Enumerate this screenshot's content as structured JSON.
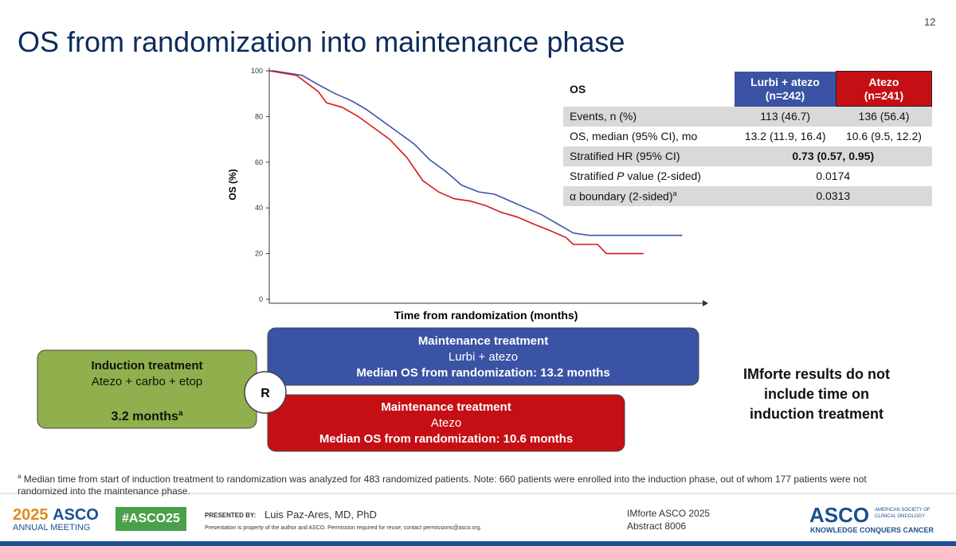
{
  "page_number": "12",
  "title": "OS from randomization into maintenance phase",
  "chart_data": {
    "type": "line",
    "y_label": "OS (%)",
    "x_label": "Time from randomization (months)",
    "xlim": [
      0,
      30
    ],
    "ylim": [
      0,
      100
    ],
    "yticks": [
      0,
      20,
      40,
      60,
      80,
      100
    ],
    "series": [
      {
        "color": "#3a53a4",
        "x": [
          0,
          0.3,
          2.3,
          3.4,
          4.6,
          5.7,
          6.8,
          7.9,
          9,
          10.1,
          11.2,
          12.3,
          13.4,
          14.6,
          15.7,
          16.8,
          17.9,
          19,
          20.1,
          21.2,
          22.3,
          28.8
        ],
        "values": [
          100,
          100,
          98,
          94,
          90,
          87,
          83,
          78,
          73,
          68,
          61,
          56,
          50,
          47,
          46,
          43,
          40,
          37,
          33,
          29,
          28,
          28
        ]
      },
      {
        "color": "#d7191c",
        "x": [
          0,
          1.9,
          3.4,
          4,
          5.1,
          6.2,
          7.3,
          8.4,
          9.6,
          10.7,
          11.8,
          12.9,
          14,
          15.1,
          16.2,
          17.3,
          18.4,
          19.6,
          20.7,
          21.2,
          22.9,
          23.5,
          26.1
        ],
        "values": [
          100,
          98,
          91,
          86,
          84,
          80,
          75,
          70,
          62,
          52,
          47,
          44,
          43,
          41,
          38,
          36,
          33,
          30,
          27,
          24,
          24,
          20,
          20
        ]
      }
    ]
  },
  "table": {
    "header": [
      "OS",
      "Lurbi + atezo",
      "(n=242)",
      "Atezo",
      "(n=241)"
    ],
    "rows": [
      {
        "label": [
          "Events, n (%)"
        ],
        "cells": [
          "113 (46.7)",
          "136 (56.4)"
        ]
      },
      {
        "label": [
          "OS, median (95% CI), mo"
        ],
        "cells": [
          "13.2 (11.9, 16.4)",
          "10.6 (9.5, 12.2)"
        ]
      },
      {
        "label": [
          "Stratified HR (95% CI)"
        ],
        "cells": [
          "0.73 (0.57, 0.95)"
        ]
      },
      {
        "label": [
          "Stratified ",
          "P",
          " value (2-sided)"
        ],
        "cells": [
          "0.0174"
        ]
      },
      {
        "label": [
          "α boundary (2-sided)",
          "a"
        ],
        "cells": [
          "0.0313"
        ]
      }
    ]
  },
  "induction": {
    "title": "Induction treatment",
    "drugs": "Atezo + carbo + etop",
    "duration": "3.2 months",
    "sup": "a"
  },
  "randomization": "R",
  "arm_blue": {
    "title": "Maintenance treatment",
    "drug": "Lurbi + atezo",
    "median": "Median OS from randomization: 13.2 months"
  },
  "arm_red": {
    "title": "Maintenance treatment",
    "drug": "Atezo",
    "median": "Median OS from randomization: 10.6 months"
  },
  "note": [
    "IMforte results do not",
    "include time on",
    "induction treatment"
  ],
  "footnote": {
    "sup": "a",
    "text": "Median time from start of induction treatment to randomization was analyzed for 483 randomized patients. Note: 660 patients were enrolled into the induction phase, out of whom 177 patients were not randomized into the maintenance phase."
  },
  "footer": {
    "year": "2025",
    "asco": "ASCO",
    "meeting": "ANNUAL MEETING",
    "hashtag": "#ASCO25",
    "presented_by": "PRESENTED BY:",
    "presenter": "Luis Paz-Ares, MD, PhD",
    "disclaimer": "Presentation is property of the author and ASCO. Permission required for reuse; contact permissions@asco.org.",
    "study": "IMforte ASCO 2025",
    "abstract": "Abstract 8006",
    "logo": "ASCO",
    "society": [
      "AMERICAN SOCIETY OF",
      "CLINICAL ONCOLOGY"
    ],
    "tagline": "KNOWLEDGE CONQUERS CANCER"
  }
}
